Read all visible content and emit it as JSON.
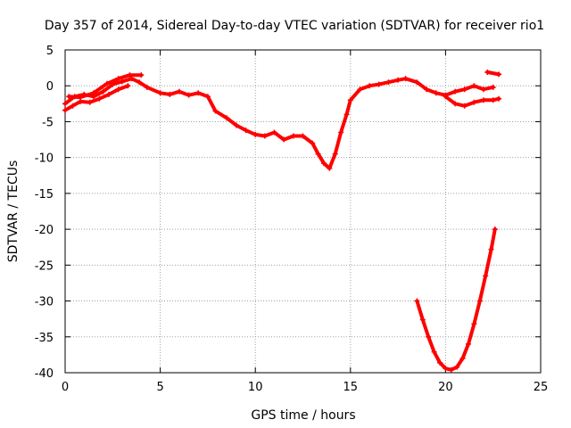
{
  "chart_data": {
    "type": "scatter",
    "title": "Day 357 of 2014, Sidereal Day-to-day VTEC variation (SDTVAR) for receiver rio1",
    "xlabel": "GPS time / hours",
    "ylabel": "SDTVAR / TECUs",
    "xlim": [
      0,
      25
    ],
    "ylim": [
      -40,
      5
    ],
    "x_ticks": [
      0,
      5,
      10,
      15,
      20,
      25
    ],
    "y_ticks": [
      5,
      0,
      -5,
      -10,
      -15,
      -20,
      -25,
      -30,
      -35,
      -40
    ],
    "x_tick_labels": [
      "0",
      "5",
      "10",
      "15",
      "20",
      "25"
    ],
    "y_tick_labels": [
      "5",
      "0",
      "-5",
      "-10",
      "-15",
      "-20",
      "-25",
      "-30",
      "-35",
      "-40"
    ],
    "grid": true,
    "marker": "plus",
    "color": "#ff0000",
    "series": [
      {
        "name": "main-trace",
        "x": [
          0.0,
          0.5,
          1.0,
          1.5,
          2.0,
          2.5,
          3.0,
          3.5,
          3.9,
          4.3,
          5.0,
          5.5,
          6.0,
          6.5,
          7.0,
          7.5,
          7.9,
          8.5,
          9.0,
          9.5,
          10.0,
          10.5,
          11.0,
          11.5,
          12.0,
          12.5,
          13.0,
          13.3,
          13.6,
          13.9,
          14.2,
          14.5,
          14.8,
          15.0,
          15.5,
          16.0,
          16.5,
          17.0,
          17.5,
          17.9,
          18.5,
          19.0,
          19.5,
          20.0,
          20.5,
          21.0,
          21.5,
          22.0,
          22.5
        ],
        "y": [
          -2.5,
          -1.5,
          -1.2,
          -1.5,
          -0.8,
          0.2,
          0.6,
          1.0,
          0.5,
          -0.2,
          -1.0,
          -1.2,
          -0.8,
          -1.3,
          -1.0,
          -1.5,
          -3.5,
          -4.5,
          -5.5,
          -6.2,
          -6.8,
          -7.0,
          -6.5,
          -7.5,
          -7.0,
          -7.0,
          -8.0,
          -9.5,
          -10.8,
          -11.5,
          -9.5,
          -6.5,
          -4.0,
          -2.0,
          -0.5,
          0.0,
          0.2,
          0.5,
          0.8,
          1.0,
          0.5,
          -0.5,
          -1.0,
          -1.3,
          -0.8,
          -0.5,
          0.0,
          -0.5,
          -0.2
        ]
      },
      {
        "name": "upper-branch",
        "x": [
          0.2,
          0.8,
          1.5,
          2.2,
          2.8,
          3.4,
          4.0
        ],
        "y": [
          -1.5,
          -1.6,
          -1.0,
          0.3,
          1.0,
          1.5,
          1.5
        ]
      },
      {
        "name": "lower-branch",
        "x": [
          20.0,
          20.5,
          21.0,
          21.5,
          22.0,
          22.5,
          22.8
        ],
        "y": [
          -1.5,
          -2.5,
          -2.8,
          -2.3,
          -2.0,
          -2.0,
          -1.8
        ]
      },
      {
        "name": "early-lower",
        "x": [
          0.0,
          0.4,
          0.8,
          1.3,
          1.8,
          2.3,
          2.8,
          3.3
        ],
        "y": [
          -3.4,
          -2.8,
          -2.2,
          -2.3,
          -1.8,
          -1.2,
          -0.5,
          0.0
        ]
      },
      {
        "name": "end-segment",
        "x": [
          22.2,
          22.8
        ],
        "y": [
          1.9,
          1.6
        ]
      },
      {
        "name": "v-trough",
        "x": [
          18.5,
          18.8,
          19.1,
          19.4,
          19.7,
          20.0,
          20.3,
          20.6,
          20.9,
          21.2,
          21.5,
          21.8,
          22.1,
          22.4,
          22.6
        ],
        "y": [
          -30.0,
          -32.6,
          -35.0,
          -37.1,
          -38.6,
          -39.4,
          -39.6,
          -39.2,
          -38.0,
          -36.0,
          -33.2,
          -30.0,
          -26.5,
          -22.8,
          -20.0
        ]
      }
    ]
  }
}
